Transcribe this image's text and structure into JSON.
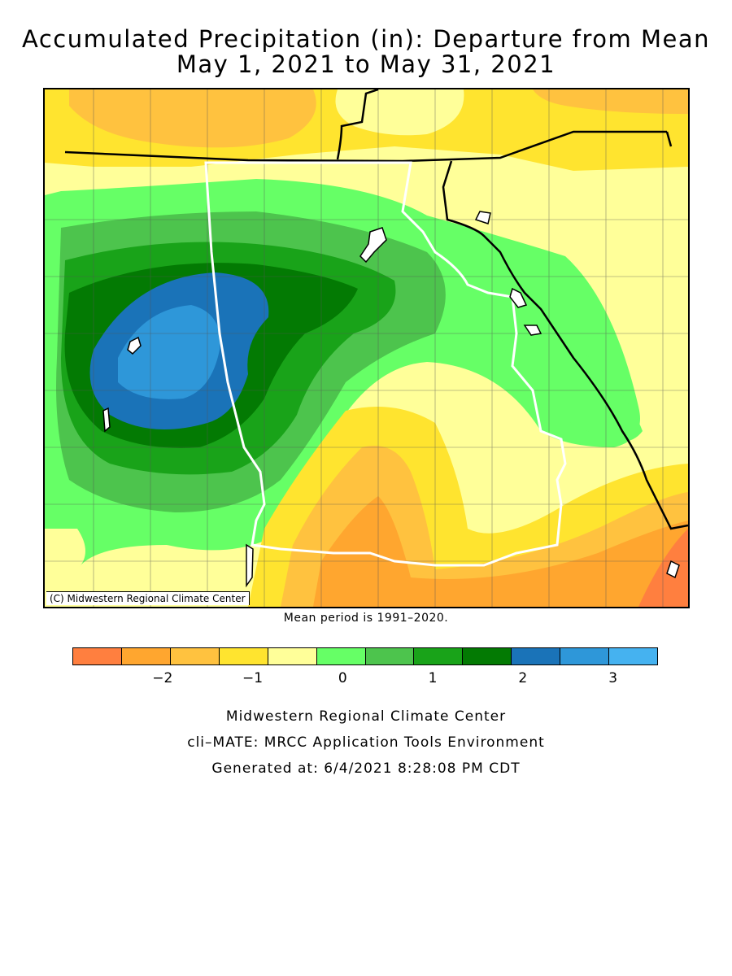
{
  "title": {
    "line1": "Accumulated Precipitation (in): Departure from Mean",
    "line2": "May 1, 2021 to May 31, 2021"
  },
  "map": {
    "copyright": "(C) Midwestern Regional Climate Center",
    "mean_period": "Mean period is 1991–2020.",
    "colors": {
      "water": "#ffffff",
      "state_border_highlight": "#ffffff",
      "state_border": "#000000",
      "county_line": "#555555"
    }
  },
  "legend": {
    "colors": [
      "#ff7f3f",
      "#ffa62f",
      "#ffc23f",
      "#ffe42f",
      "#ffff99",
      "#66ff66",
      "#4dc44d",
      "#19a319",
      "#037a03",
      "#1a73b8",
      "#2e97d9",
      "#45b2f0"
    ],
    "ticks": [
      {
        "label": "−2",
        "value": -2
      },
      {
        "label": "−1",
        "value": -1
      },
      {
        "label": "0",
        "value": 0
      },
      {
        "label": "1",
        "value": 1
      },
      {
        "label": "2",
        "value": 2
      },
      {
        "label": "3",
        "value": 3
      }
    ],
    "min": -3,
    "max": 3.5
  },
  "footer": {
    "line1": "Midwestern Regional Climate Center",
    "line2": "cli–MATE: MRCC Application Tools Environment",
    "line3": "Generated at: 6/4/2021 8:28:08 PM CDT"
  }
}
